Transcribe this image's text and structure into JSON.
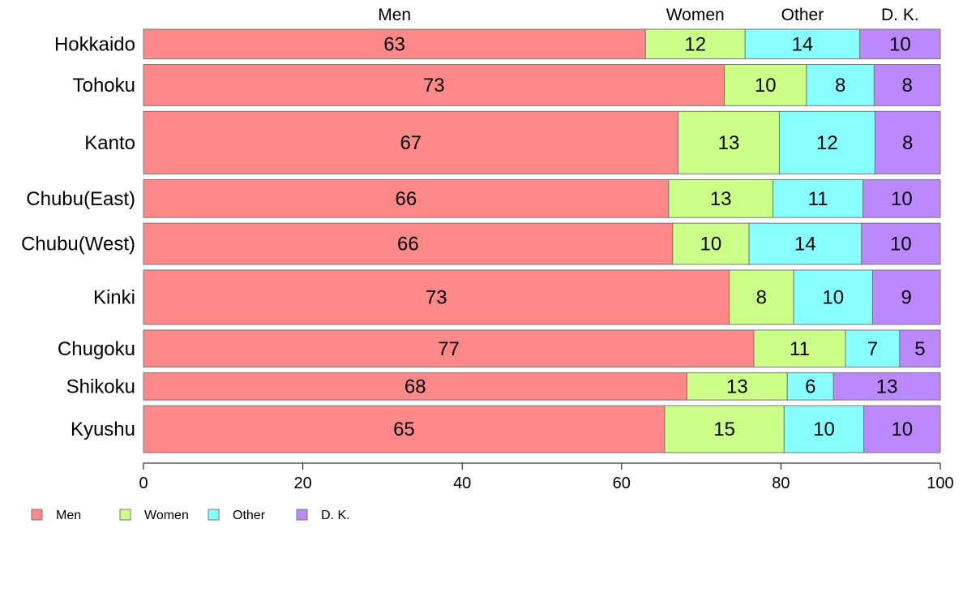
{
  "chart_data": {
    "type": "bar",
    "orientation": "horizontal",
    "stacked": true,
    "mosaic": true,
    "categories": [
      "Hokkaido",
      "Tohoku",
      "Kanto",
      "Chubu(East)",
      "Chubu(West)",
      "Kinki",
      "Chugoku",
      "Shikoku",
      "Kyushu"
    ],
    "series": [
      {
        "name": "Men",
        "color": "#FF8888",
        "values": [
          63,
          73,
          67,
          66,
          66,
          73,
          77,
          68,
          65
        ]
      },
      {
        "name": "Women",
        "color": "#CCFF88",
        "values": [
          12,
          10,
          13,
          13,
          10,
          8,
          11,
          13,
          15
        ]
      },
      {
        "name": "Other",
        "color": "#88FFFF",
        "values": [
          14,
          8,
          12,
          11,
          14,
          10,
          7,
          6,
          10
        ]
      },
      {
        "name": "D. K.",
        "color": "#BB88FF",
        "values": [
          10,
          8,
          8,
          10,
          10,
          9,
          5,
          13,
          10
        ]
      }
    ],
    "segment_bounds": [
      [
        0,
        63.0,
        75.5,
        89.9,
        100
      ],
      [
        0,
        72.9,
        83.2,
        91.7,
        100
      ],
      [
        0,
        67.1,
        79.8,
        91.8,
        100
      ],
      [
        0,
        65.9,
        79.0,
        90.3,
        100
      ],
      [
        0,
        66.4,
        76.0,
        90.1,
        100
      ],
      [
        0,
        73.5,
        81.6,
        91.5,
        100
      ],
      [
        0,
        76.6,
        88.1,
        94.9,
        100
      ],
      [
        0,
        68.2,
        80.8,
        86.6,
        100
      ],
      [
        0,
        65.4,
        80.4,
        90.4,
        100
      ]
    ],
    "row_weights": [
      36,
      50,
      76,
      46,
      50,
      66,
      45,
      33,
      57
    ],
    "xlim": [
      0,
      100
    ],
    "x_ticks": [
      0,
      20,
      40,
      60,
      80,
      100
    ],
    "column_headers": [
      "Men",
      "Women",
      "Other",
      "D. K."
    ],
    "title": "",
    "xlabel": "",
    "ylabel": "",
    "grid": false,
    "legend": "bottom-left"
  }
}
